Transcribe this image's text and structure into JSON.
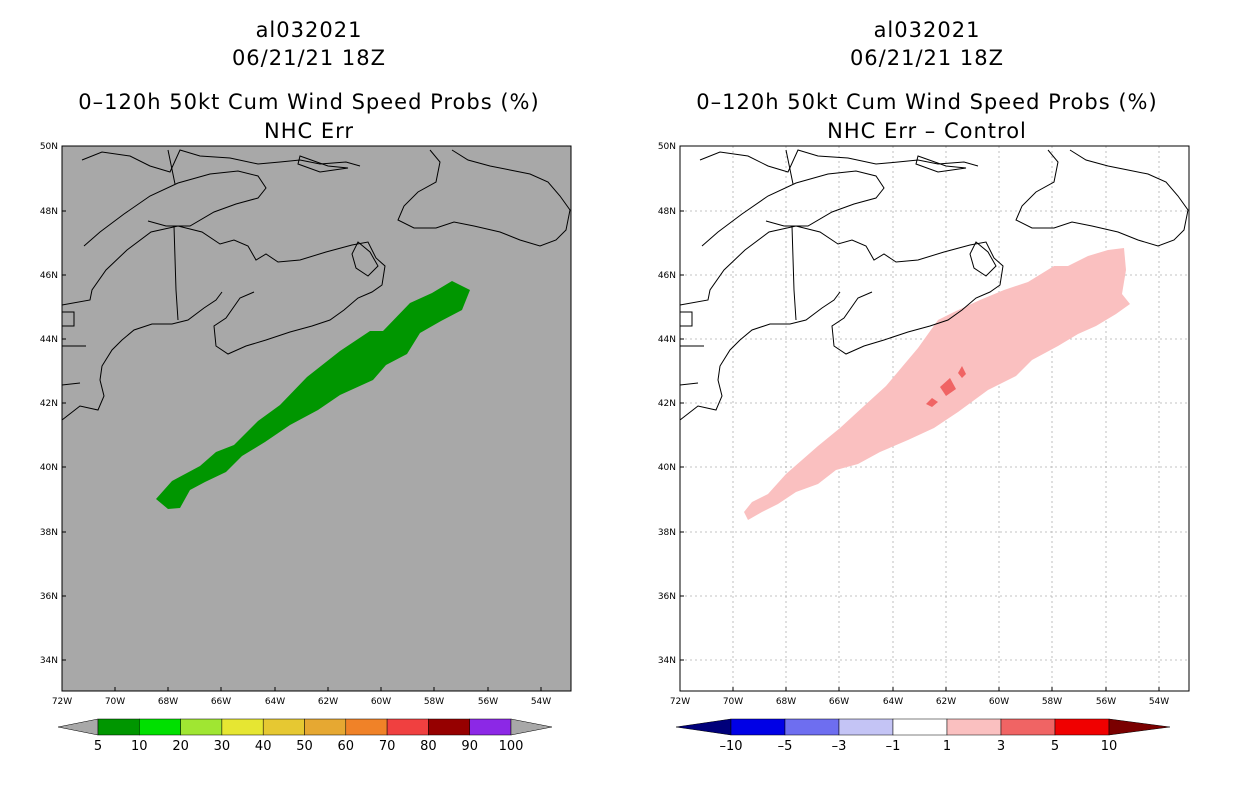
{
  "left_panel": {
    "storm_id": "al032021",
    "datetime": "06/21/21 18Z",
    "product": "0–120h 50kt Cum Wind Speed Probs (%)",
    "subtitle": "NHC Err",
    "background_color": "#a8a8a8",
    "swath_color": "#009600",
    "colorbar": {
      "labels": [
        "5",
        "10",
        "20",
        "30",
        "40",
        "50",
        "60",
        "70",
        "80",
        "90",
        "100"
      ],
      "colors": [
        "#a8a8a8",
        "#009600",
        "#00e000",
        "#a0e632",
        "#e6e632",
        "#e6c832",
        "#e6a832",
        "#f08228",
        "#f04040",
        "#960000",
        "#8c28e6",
        "#a8a8a8"
      ]
    }
  },
  "right_panel": {
    "storm_id": "al032021",
    "datetime": "06/21/21 18Z",
    "product": "0–120h 50kt Cum Wind Speed Probs (%)",
    "subtitle": "NHC Err – Control",
    "background_color": "#ffffff",
    "swath_color": "#fac0c0",
    "spot_color": "#f06464",
    "colorbar": {
      "labels": [
        "–10",
        "–5",
        "–3",
        "–1",
        "1",
        "3",
        "5",
        "10"
      ],
      "colors": [
        "#00007a",
        "#0000e6",
        "#6e6ef0",
        "#c4c4f5",
        "#ffffff",
        "#fac0c0",
        "#f06464",
        "#f00000",
        "#7a0000"
      ]
    }
  },
  "axes": {
    "lat_labels": [
      "50N",
      "48N",
      "46N",
      "44N",
      "42N",
      "40N",
      "38N",
      "36N",
      "34N"
    ],
    "lon_labels": [
      "72W",
      "70W",
      "68W",
      "66W",
      "64W",
      "62W",
      "60W",
      "58W",
      "56W",
      "54W"
    ]
  }
}
